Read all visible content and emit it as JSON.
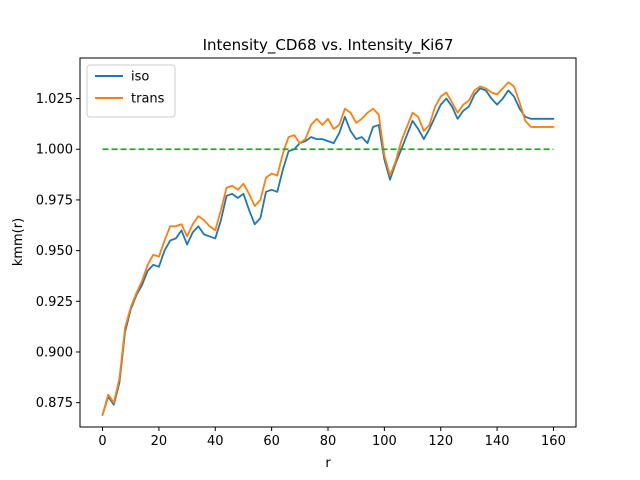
{
  "chart_data": {
    "type": "line",
    "title": "Intensity_CD68 vs. Intensity_Ki67",
    "xlabel": "r",
    "ylabel": "kmm(r)",
    "xlim": [
      -8,
      168
    ],
    "ylim": [
      0.863,
      1.045
    ],
    "xticks": [
      0,
      20,
      40,
      60,
      80,
      100,
      120,
      140,
      160
    ],
    "yticks": [
      0.875,
      0.9,
      0.925,
      0.95,
      0.975,
      1.0,
      1.025
    ],
    "ytick_labels": [
      "0.875",
      "0.900",
      "0.925",
      "0.950",
      "0.975",
      "1.000",
      "1.025"
    ],
    "legend": {
      "position": "top-left"
    },
    "grid": false,
    "series": [
      {
        "name": "iso",
        "color": "#1f77b4",
        "style": "solid",
        "x": [
          0,
          2,
          4,
          6,
          8,
          10,
          12,
          14,
          16,
          18,
          20,
          22,
          24,
          26,
          28,
          30,
          32,
          34,
          36,
          38,
          40,
          42,
          44,
          46,
          48,
          50,
          52,
          54,
          56,
          58,
          60,
          62,
          64,
          66,
          68,
          70,
          72,
          74,
          76,
          78,
          80,
          82,
          84,
          86,
          88,
          90,
          92,
          94,
          96,
          98,
          100,
          102,
          104,
          106,
          108,
          110,
          112,
          114,
          116,
          118,
          120,
          122,
          124,
          126,
          128,
          130,
          132,
          134,
          136,
          138,
          140,
          142,
          144,
          146,
          148,
          150,
          152,
          154,
          156,
          158,
          160
        ],
        "y": [
          0.869,
          0.878,
          0.874,
          0.885,
          0.91,
          0.921,
          0.928,
          0.933,
          0.94,
          0.943,
          0.942,
          0.95,
          0.955,
          0.956,
          0.96,
          0.953,
          0.959,
          0.962,
          0.958,
          0.957,
          0.956,
          0.965,
          0.977,
          0.978,
          0.976,
          0.978,
          0.97,
          0.963,
          0.966,
          0.979,
          0.98,
          0.979,
          0.99,
          0.999,
          1.0,
          1.003,
          1.004,
          1.006,
          1.005,
          1.005,
          1.004,
          1.003,
          1.008,
          1.016,
          1.009,
          1.005,
          1.006,
          1.003,
          1.011,
          1.012,
          0.995,
          0.985,
          0.993,
          1.0,
          1.007,
          1.014,
          1.01,
          1.005,
          1.01,
          1.016,
          1.022,
          1.025,
          1.021,
          1.015,
          1.019,
          1.021,
          1.027,
          1.03,
          1.029,
          1.025,
          1.022,
          1.025,
          1.029,
          1.026,
          1.02,
          1.016,
          1.015,
          1.015,
          1.015,
          1.015,
          1.015
        ]
      },
      {
        "name": "trans",
        "color": "#ff7f0e",
        "style": "solid",
        "x": [
          0,
          2,
          4,
          6,
          8,
          10,
          12,
          14,
          16,
          18,
          20,
          22,
          24,
          26,
          28,
          30,
          32,
          34,
          36,
          38,
          40,
          42,
          44,
          46,
          48,
          50,
          52,
          54,
          56,
          58,
          60,
          62,
          64,
          66,
          68,
          70,
          72,
          74,
          76,
          78,
          80,
          82,
          84,
          86,
          88,
          90,
          92,
          94,
          96,
          98,
          100,
          102,
          104,
          106,
          108,
          110,
          112,
          114,
          116,
          118,
          120,
          122,
          124,
          126,
          128,
          130,
          132,
          134,
          136,
          138,
          140,
          142,
          144,
          146,
          148,
          150,
          152,
          154,
          156,
          158,
          160
        ],
        "y": [
          0.869,
          0.879,
          0.875,
          0.887,
          0.912,
          0.922,
          0.929,
          0.935,
          0.943,
          0.948,
          0.947,
          0.955,
          0.962,
          0.962,
          0.963,
          0.957,
          0.963,
          0.967,
          0.965,
          0.962,
          0.96,
          0.97,
          0.981,
          0.982,
          0.98,
          0.983,
          0.978,
          0.972,
          0.975,
          0.986,
          0.988,
          0.987,
          0.998,
          1.006,
          1.007,
          1.003,
          1.005,
          1.012,
          1.015,
          1.012,
          1.015,
          1.01,
          1.012,
          1.02,
          1.018,
          1.013,
          1.015,
          1.018,
          1.02,
          1.017,
          0.997,
          0.987,
          0.994,
          1.004,
          1.011,
          1.018,
          1.016,
          1.009,
          1.012,
          1.021,
          1.026,
          1.028,
          1.023,
          1.018,
          1.022,
          1.024,
          1.029,
          1.031,
          1.03,
          1.028,
          1.027,
          1.03,
          1.033,
          1.031,
          1.023,
          1.014,
          1.011,
          1.011,
          1.011,
          1.011,
          1.011
        ]
      },
      {
        "name": "",
        "color": "#2ca02c",
        "style": "dashed",
        "x": [
          0,
          160
        ],
        "y": [
          1.0,
          1.0
        ]
      }
    ]
  }
}
